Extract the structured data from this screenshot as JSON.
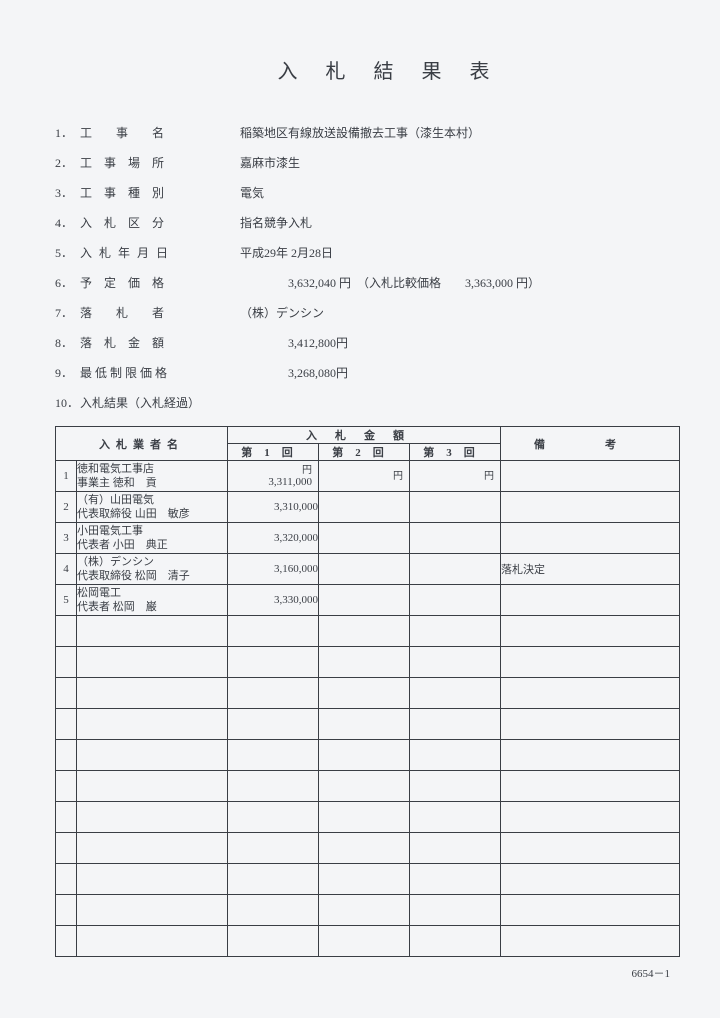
{
  "title": "入札結果表",
  "info": [
    {
      "num": "1．",
      "label": "工事名",
      "labelClass": "spaced-4",
      "value": "稲築地区有線放送設備撤去工事（漆生本村）"
    },
    {
      "num": "2．",
      "label": "工事場所",
      "labelClass": "spaced-3",
      "value": "嘉麻市漆生"
    },
    {
      "num": "3．",
      "label": "工事種別",
      "labelClass": "spaced-3",
      "value": "電気"
    },
    {
      "num": "4．",
      "label": "入札区分",
      "labelClass": "spaced-3",
      "value": "指名競争入札"
    },
    {
      "num": "5．",
      "label": "入札年月日",
      "labelClass": "spaced-5",
      "value": "平成29年 2月28日"
    },
    {
      "num": "6．",
      "label": "予定価格",
      "labelClass": "spaced-3",
      "value": "　　　　3,632,040 円　（入札比較価格　　3,363,000 円）"
    },
    {
      "num": "7．",
      "label": "落札者",
      "labelClass": "spaced-4",
      "value": "（株）デンシン"
    },
    {
      "num": "8．",
      "label": "落札金額",
      "labelClass": "spaced-3",
      "value": "　　　　3,412,800円"
    },
    {
      "num": "9．",
      "label": "最低制限価格",
      "labelClass": "spaced-6",
      "value": "　　　　3,268,080円"
    },
    {
      "num": "10．",
      "label": "入札結果（入札経過）",
      "labelClass": "",
      "value": ""
    }
  ],
  "table": {
    "header_bidder": "入札業者名",
    "header_amount": "入札金額",
    "header_remark": "備考",
    "header_round1": "第1回",
    "header_round2": "第2回",
    "header_round3": "第3回",
    "yen": "円",
    "rows": [
      {
        "num": "1",
        "line1": "徳和電気工事店",
        "line2": "事業主 徳和　貢",
        "amt1": "3,311,000",
        "remark": ""
      },
      {
        "num": "2",
        "line1": "（有）山田電気",
        "line2": "代表取締役 山田　敏彦",
        "amt1": "3,310,000",
        "remark": ""
      },
      {
        "num": "3",
        "line1": "小田電気工事",
        "line2": "代表者 小田　典正",
        "amt1": "3,320,000",
        "remark": ""
      },
      {
        "num": "4",
        "line1": "（株）デンシン",
        "line2": "代表取締役 松岡　清子",
        "amt1": "3,160,000",
        "remark": "落札決定"
      },
      {
        "num": "5",
        "line1": "松岡電工",
        "line2": "代表者 松岡　巌",
        "amt1": "3,330,000",
        "remark": ""
      }
    ],
    "empty_rows": 11
  },
  "footer": "6654－1"
}
